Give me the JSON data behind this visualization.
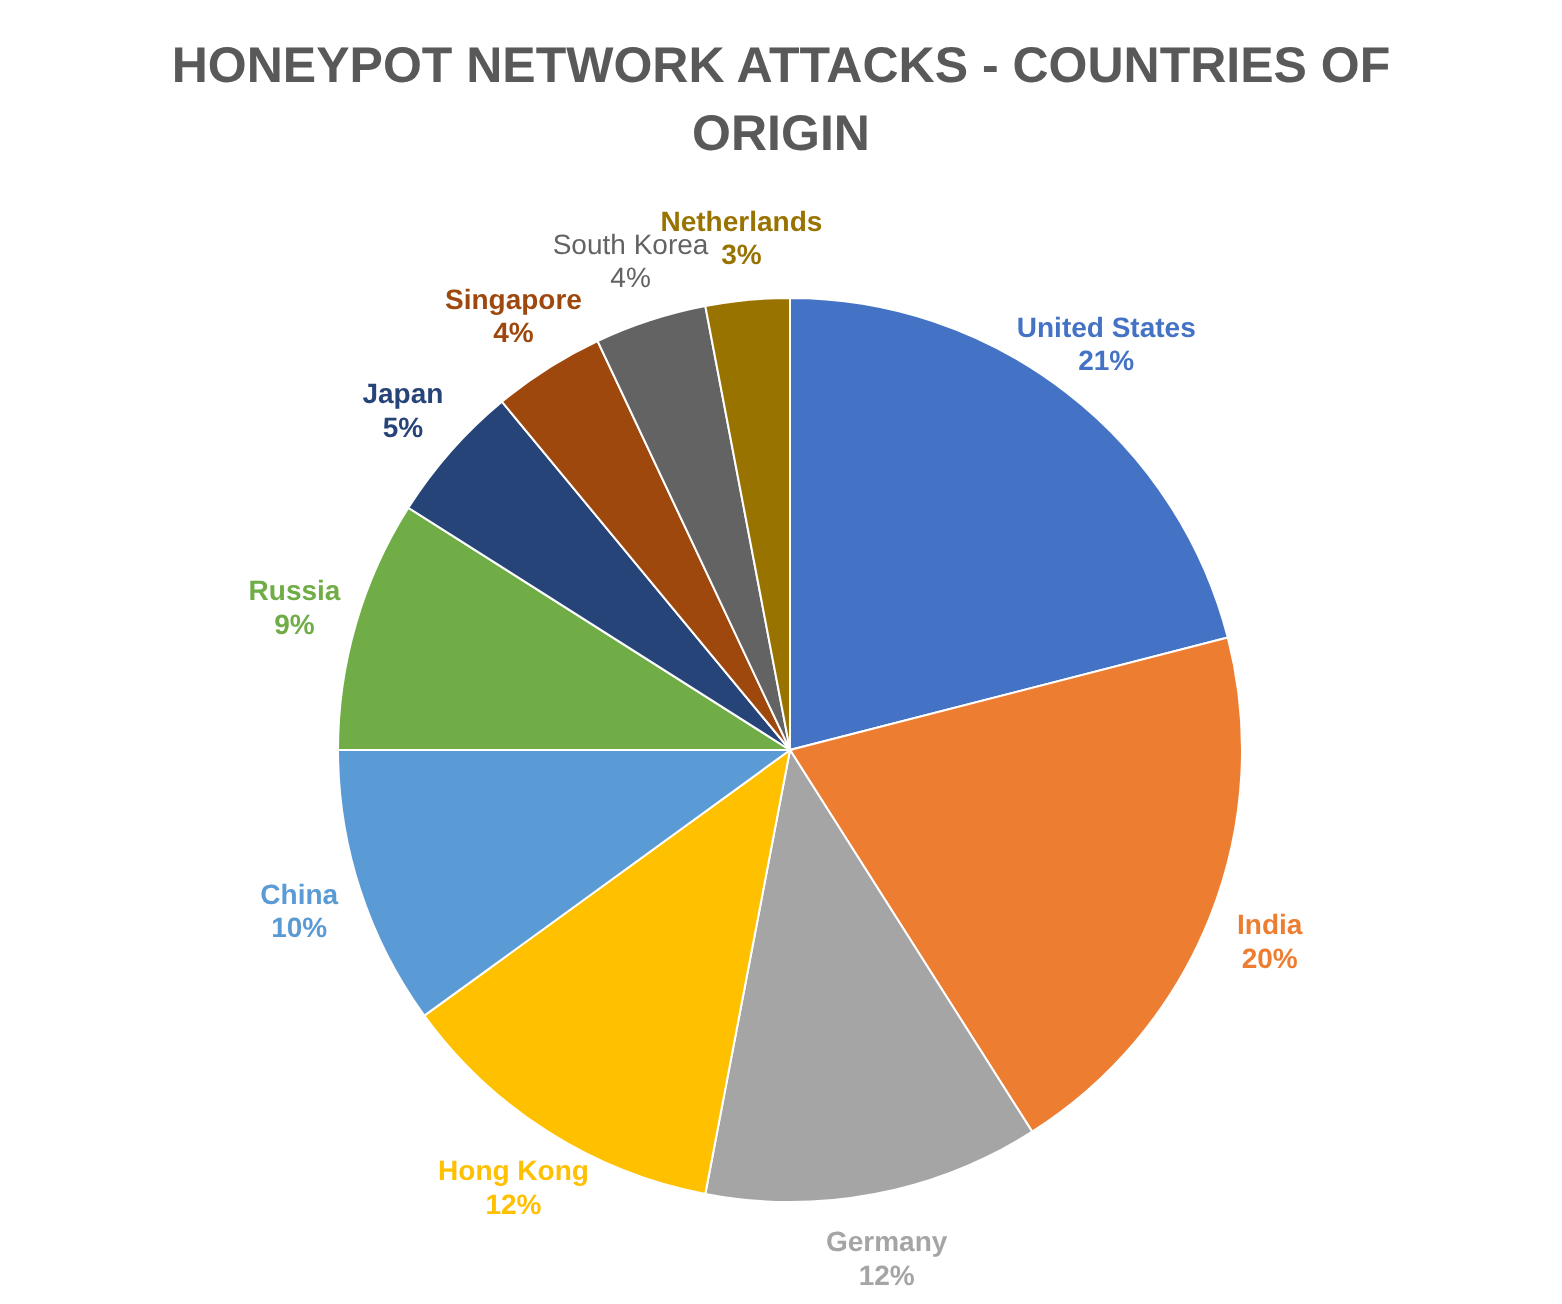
{
  "chart_data": {
    "type": "pie",
    "title": "HONEYPOT NETWORK ATTACKS - COUNTRIES OF ORIGIN",
    "categories": [
      "United States",
      "India",
      "Germany",
      "Hong Kong",
      "China",
      "Russia",
      "Japan",
      "Singapore",
      "South Korea",
      "Netherlands"
    ],
    "values": [
      21,
      20,
      12,
      12,
      10,
      9,
      5,
      4,
      4,
      3
    ],
    "colors": [
      "#4472c4",
      "#ed7d31",
      "#a5a5a5",
      "#ffc000",
      "#5b9bd5",
      "#70ad47",
      "#264478",
      "#9e480e",
      "#636363",
      "#997300"
    ],
    "value_labels": [
      "21%",
      "20%",
      "12%",
      "12%",
      "10%",
      "9%",
      "5%",
      "4%",
      "4%",
      "3%"
    ],
    "legend": false
  }
}
